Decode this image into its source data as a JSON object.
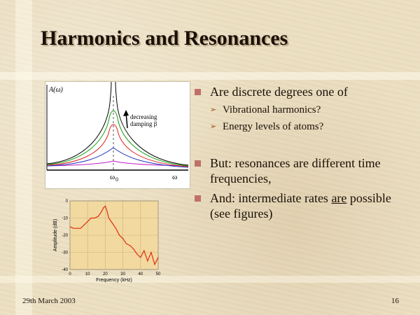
{
  "slide": {
    "title": "Harmonics and Resonances",
    "footer_date": "29th March 2003",
    "page_number": "16",
    "bullets": [
      {
        "text": "Are discrete degrees one of",
        "sub": [
          "Vibrational harmonics?",
          "Energy levels of atoms?"
        ]
      },
      {
        "text": "But: resonances are different time frequencies,"
      },
      {
        "text_before": "And: intermediate rates ",
        "text_underlined": "are",
        "text_after": " possible (see figures)"
      }
    ],
    "bullet_icon": "square-bullet-icon",
    "sub_bullet_icon": "arrow-bullet-icon",
    "colors": {
      "bullet": "#c0706a",
      "sub_bullet": "#a0521a",
      "title": "#1a1008"
    }
  },
  "figure_resonance": {
    "ylabel": "A(ω)",
    "xlabel": "ω",
    "peak_label": "ω",
    "peak_subscript": "0",
    "annotation_line1": "decreasing",
    "annotation_line2": "damping β",
    "curve_colors": [
      "#000000",
      "#10a010",
      "#e02020",
      "#2030c0",
      "#c020c0"
    ]
  },
  "chart_data": {
    "type": "line",
    "title": "",
    "xlabel": "Frequency (kHz)",
    "ylabel": "Amplitude (dB)",
    "xlim": [
      0,
      50
    ],
    "ylim": [
      -40,
      0
    ],
    "xticks": [
      "0",
      "10",
      "20",
      "30",
      "40",
      "50"
    ],
    "yticks": [
      "0",
      "-10",
      "-20",
      "-30",
      "-40"
    ],
    "x": [
      0,
      2,
      4,
      6,
      8,
      10,
      12,
      14,
      16,
      18,
      19,
      20,
      21,
      22,
      24,
      26,
      28,
      30,
      32,
      34,
      36,
      38,
      40,
      42,
      44,
      46,
      48,
      50
    ],
    "y": [
      -15,
      -16,
      -16,
      -16,
      -14,
      -12,
      -10,
      -10,
      -9,
      -6,
      -4,
      -3,
      -6,
      -10,
      -13,
      -16,
      -20,
      -22,
      -25,
      -26,
      -28,
      -31,
      -33,
      -29,
      -35,
      -30,
      -37,
      -33
    ],
    "color": "#e03010"
  }
}
